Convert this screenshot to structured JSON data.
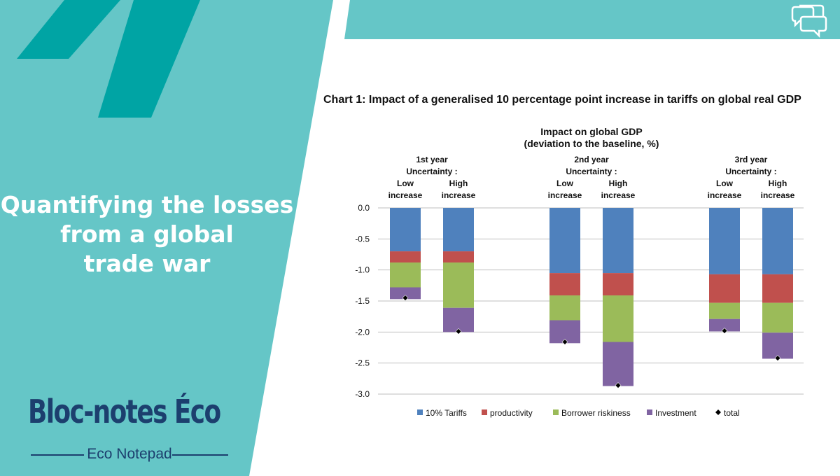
{
  "headline": [
    "Quantifying the losses",
    "from a global",
    "trade war"
  ],
  "brand": {
    "name": "Bloc-notes Éco",
    "subtitle": "Eco Notepad"
  },
  "icons": {
    "quote": "quote-icon",
    "chat": "chat-bubbles-icon"
  },
  "colors": {
    "teal_bg": "#65c6c7",
    "teal_dark": "#00a4a4",
    "navy": "#1c3f6e"
  },
  "chart_data": {
    "type": "bar",
    "stacked": true,
    "title": "Chart 1: Impact of a generalised 10 percentage point increase in tariffs on global real GDP",
    "subtitle": [
      "Impact on global GDP",
      "(deviation to the baseline, %)"
    ],
    "groups": [
      {
        "label": [
          "1st year",
          "Uncertainty :"
        ]
      },
      {
        "label": [
          "2nd year",
          "Uncertainty :"
        ]
      },
      {
        "label": [
          "3rd year",
          "Uncertainty :"
        ]
      }
    ],
    "categories": [
      [
        "Low",
        "increase"
      ],
      [
        "High",
        "increase"
      ],
      [
        "Low",
        "increase"
      ],
      [
        "High",
        "increase"
      ],
      [
        "Low",
        "increase"
      ],
      [
        "High",
        "increase"
      ]
    ],
    "series": [
      {
        "name": "10% Tariffs",
        "color": "#4f81bd",
        "values": [
          -0.7,
          -0.7,
          -1.05,
          -1.05,
          -1.07,
          -1.07
        ]
      },
      {
        "name": "productivity",
        "color": "#c0504d",
        "values": [
          -0.18,
          -0.18,
          -0.36,
          -0.36,
          -0.46,
          -0.46
        ]
      },
      {
        "name": "Borrower riskiness",
        "color": "#9bbb59",
        "values": [
          -0.4,
          -0.73,
          -0.4,
          -0.75,
          -0.26,
          -0.48
        ]
      },
      {
        "name": "Investment",
        "color": "#8064a2",
        "values": [
          -0.19,
          -0.39,
          -0.37,
          -0.71,
          -0.2,
          -0.42
        ]
      }
    ],
    "total": {
      "name": "total",
      "color": "#000000",
      "values": [
        -1.45,
        -1.99,
        -2.16,
        -2.86,
        -1.98,
        -2.42
      ]
    },
    "yticks": [
      "0.0",
      "-0.5",
      "-1.0",
      "-1.5",
      "-2.0",
      "-2.5",
      "-3.0"
    ],
    "ylim": [
      -3.0,
      0.0
    ],
    "grid": true,
    "legend": "bottom"
  }
}
